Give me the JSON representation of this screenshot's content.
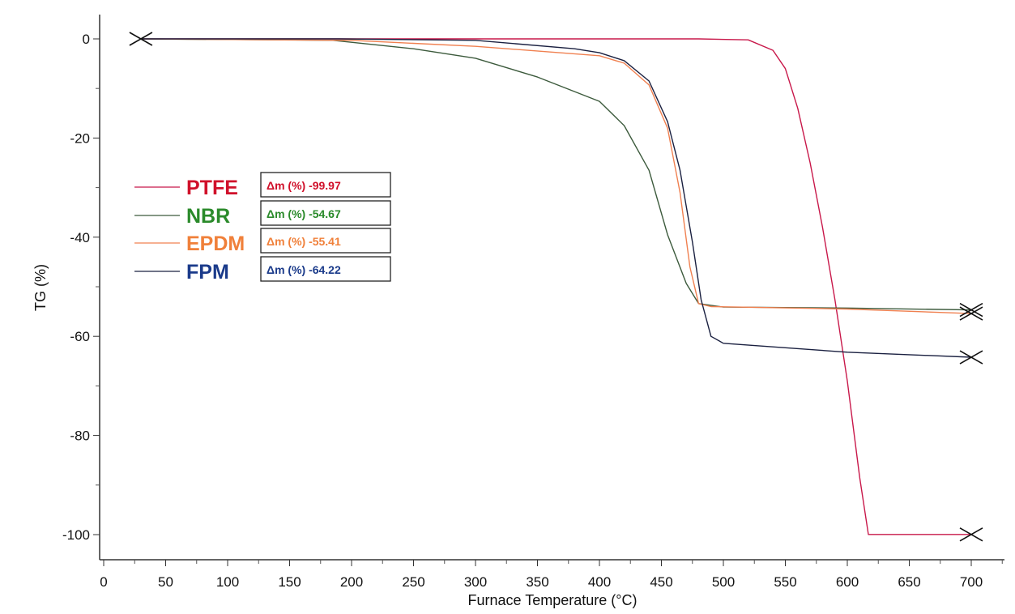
{
  "chart_data": {
    "type": "line",
    "title": "",
    "xlabel": "Furnace Temperature (°C)",
    "ylabel": "TG (%)",
    "xlim": [
      0,
      725
    ],
    "ylim": [
      -105,
      4
    ],
    "xticks": [
      0,
      50,
      100,
      150,
      200,
      250,
      300,
      350,
      400,
      450,
      500,
      550,
      600,
      650,
      700
    ],
    "yticks": [
      0,
      -20,
      -40,
      -60,
      -80,
      -100
    ],
    "grid": false,
    "legend_position": "upper-left",
    "series": [
      {
        "name": "PTFE",
        "label_color": "#d0102a",
        "line_color": "#c8184a",
        "delta_m_label": "Δm (%) -99.97",
        "delta_m": -99.97,
        "x": [
          30,
          200,
          400,
          480,
          520,
          540,
          550,
          560,
          570,
          580,
          590,
          600,
          610,
          617,
          700
        ],
        "y": [
          0,
          0,
          0,
          0,
          -0.2,
          -2.3,
          -6,
          -14,
          -25,
          -38,
          -52.6,
          -69,
          -88.5,
          -99.97,
          -99.97
        ]
      },
      {
        "name": "NBR",
        "label_color": "#2a8a2a",
        "line_color": "#3c5a3c",
        "delta_m_label": "Δm (%) -54.67",
        "delta_m": -54.67,
        "x": [
          30,
          185,
          250,
          300,
          350,
          400,
          420,
          440,
          455,
          470,
          480,
          500,
          600,
          700
        ],
        "y": [
          0,
          -0.3,
          -2,
          -3.9,
          -7.7,
          -12.6,
          -17.5,
          -26.5,
          -39.5,
          -49.3,
          -53.4,
          -54.1,
          -54.3,
          -54.67
        ]
      },
      {
        "name": "EPDM",
        "label_color": "#f0803a",
        "line_color": "#f08050",
        "delta_m_label": "Δm (%) -55.41",
        "delta_m": -55.41,
        "x": [
          30,
          200,
          300,
          400,
          420,
          440,
          455,
          465,
          473,
          480,
          490,
          600,
          700
        ],
        "y": [
          0,
          -0.3,
          -1.5,
          -3.4,
          -4.9,
          -9.3,
          -18,
          -31,
          -46,
          -53.4,
          -54,
          -54.5,
          -55.41
        ]
      },
      {
        "name": "FPM",
        "label_color": "#1a3a8a",
        "line_color": "#1a2040",
        "delta_m_label": "Δm (%) -64.22",
        "delta_m": -64.22,
        "x": [
          30,
          190,
          300,
          380,
          400,
          420,
          440,
          455,
          465,
          475,
          482,
          490,
          500,
          550,
          600,
          700
        ],
        "y": [
          0,
          0,
          -0.3,
          -2,
          -2.8,
          -4.4,
          -8.5,
          -16.7,
          -26.5,
          -41,
          -52.6,
          -60,
          -61.4,
          -62.3,
          -63.2,
          -64.22
        ]
      }
    ],
    "annotations": [
      {
        "type": "start-marker",
        "x": 30,
        "y": 0,
        "symbol": "×"
      },
      {
        "type": "end-marker",
        "x": 700,
        "y": -99.97,
        "symbol": "×"
      },
      {
        "type": "end-marker",
        "x": 700,
        "y": -54.67,
        "symbol": "×"
      },
      {
        "type": "end-marker",
        "x": 700,
        "y": -55.41,
        "symbol": "×"
      },
      {
        "type": "end-marker",
        "x": 700,
        "y": -64.22,
        "symbol": "×"
      }
    ]
  }
}
